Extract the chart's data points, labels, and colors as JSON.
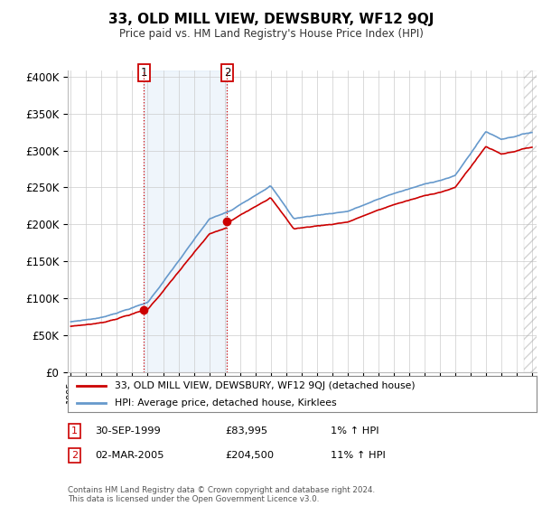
{
  "title": "33, OLD MILL VIEW, DEWSBURY, WF12 9QJ",
  "subtitle": "Price paid vs. HM Land Registry's House Price Index (HPI)",
  "footer": "Contains HM Land Registry data © Crown copyright and database right 2024.\nThis data is licensed under the Open Government Licence v3.0.",
  "legend_line1": "33, OLD MILL VIEW, DEWSBURY, WF12 9QJ (detached house)",
  "legend_line2": "HPI: Average price, detached house, Kirklees",
  "transaction1_date": "30-SEP-1999",
  "transaction1_price": "£83,995",
  "transaction1_hpi": "1% ↑ HPI",
  "transaction2_date": "02-MAR-2005",
  "transaction2_price": "£204,500",
  "transaction2_hpi": "11% ↑ HPI",
  "hpi_line_color": "#6699cc",
  "price_line_color": "#cc0000",
  "marker_color": "#cc0000",
  "vline_color": "#cc0000",
  "shade_color": "#ddeeff",
  "background_color": "#ffffff",
  "grid_color": "#cccccc",
  "ylim_min": 0,
  "ylim_max": 400000,
  "transaction1_year": 1999.75,
  "transaction1_value": 83995,
  "transaction2_year": 2005.17,
  "transaction2_value": 204500
}
